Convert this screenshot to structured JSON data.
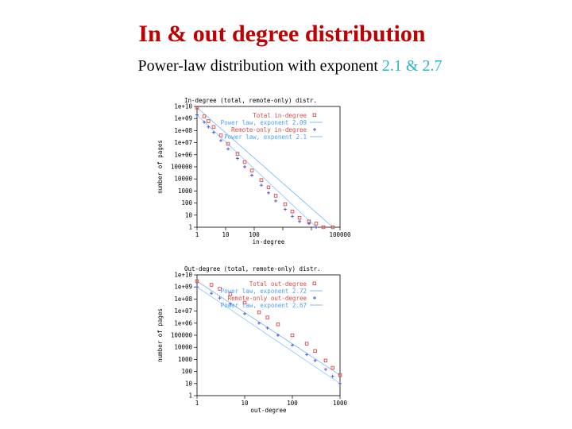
{
  "slide": {
    "title": "In & out degree distribution",
    "subtitle_prefix": "Power-law distribution with exponent ",
    "subtitle_hl1": "2.1",
    "subtitle_amp": " & ",
    "subtitle_hl2": "2.7"
  },
  "colors": {
    "title": "#c00000",
    "highlight": "#29b6c8",
    "total_series": "#d84a4a",
    "remote_series": "#4a4adc"
  },
  "chart_data": [
    {
      "type": "scatter",
      "title": "In-degree (total, remote-only) distr.",
      "xlabel": "in-degree",
      "ylabel": "number of pages",
      "xscale": "log",
      "yscale": "log",
      "xlim": [
        1,
        1000000
      ],
      "ylim": [
        1,
        10000000000
      ],
      "x_ticks": [
        "1",
        "10",
        "100",
        "",
        "",
        "100000"
      ],
      "y_ticks": [
        "1e+10",
        "1e+09",
        "1e+08",
        "1e+07",
        "1e+06",
        "100000",
        "10000",
        "1000",
        "100",
        "10",
        "1"
      ],
      "legend": [
        "Total in-degree",
        "Power law, exponent 2.09",
        "Remote-only in-degree",
        "Power law, exponent 2.1"
      ],
      "legend_position": "top-right",
      "series": [
        {
          "name": "Total in-degree",
          "x": [
            1,
            2,
            3,
            5,
            10,
            20,
            50,
            100,
            200,
            500,
            1000,
            2000,
            5000,
            10000,
            20000,
            50000,
            100000,
            200000,
            500000
          ],
          "y": [
            8000000000,
            1500000000,
            600000000,
            200000000,
            40000000,
            8000000,
            1200000,
            250000,
            50000,
            8000,
            2000,
            400,
            80,
            20,
            6,
            3,
            2,
            1,
            1
          ]
        },
        {
          "name": "Remote-only in-degree",
          "x": [
            1,
            2,
            3,
            5,
            10,
            20,
            50,
            100,
            200,
            500,
            1000,
            2000,
            5000,
            10000,
            20000,
            50000,
            100000
          ],
          "y": [
            2000000000,
            500000000,
            200000000,
            70000000,
            15000000,
            3000000,
            500000,
            100000,
            20000,
            3000,
            700,
            150,
            30,
            8,
            3,
            2,
            1
          ]
        }
      ]
    },
    {
      "type": "scatter",
      "title": "Out-degree (total, remote-only) distr.",
      "xlabel": "out-degree",
      "ylabel": "number of pages",
      "xscale": "log",
      "yscale": "log",
      "xlim": [
        1,
        1000
      ],
      "ylim": [
        1,
        10000000000
      ],
      "x_ticks": [
        "1",
        "10",
        "100",
        "1000"
      ],
      "y_ticks": [
        "1e+10",
        "1e+09",
        "1e+08",
        "1e+07",
        "1e+06",
        "100000",
        "10000",
        "1000",
        "100",
        "10",
        "1"
      ],
      "legend": [
        "Total out-degree",
        "Power law, exponent 2.72",
        "Remote-only out-degree",
        "Power law, exponent 2.67"
      ],
      "legend_position": "top-right",
      "series": [
        {
          "name": "Total out-degree",
          "x": [
            1,
            2,
            3,
            5,
            10,
            20,
            30,
            50,
            100,
            200,
            300,
            500,
            700,
            1000
          ],
          "y": [
            3000000000,
            1500000000,
            700000000,
            250000000,
            50000000,
            8000000,
            3000000,
            800000,
            100000,
            20000,
            5000,
            800,
            200,
            50
          ]
        },
        {
          "name": "Remote-only out-degree",
          "x": [
            1,
            2,
            3,
            5,
            10,
            20,
            30,
            50,
            100,
            200,
            300,
            500,
            700,
            1000
          ],
          "y": [
            1000000000,
            300000000,
            120000000,
            40000000,
            6000000,
            1000000,
            400000,
            100000,
            15000,
            2500,
            800,
            150,
            40,
            10
          ]
        }
      ]
    }
  ]
}
